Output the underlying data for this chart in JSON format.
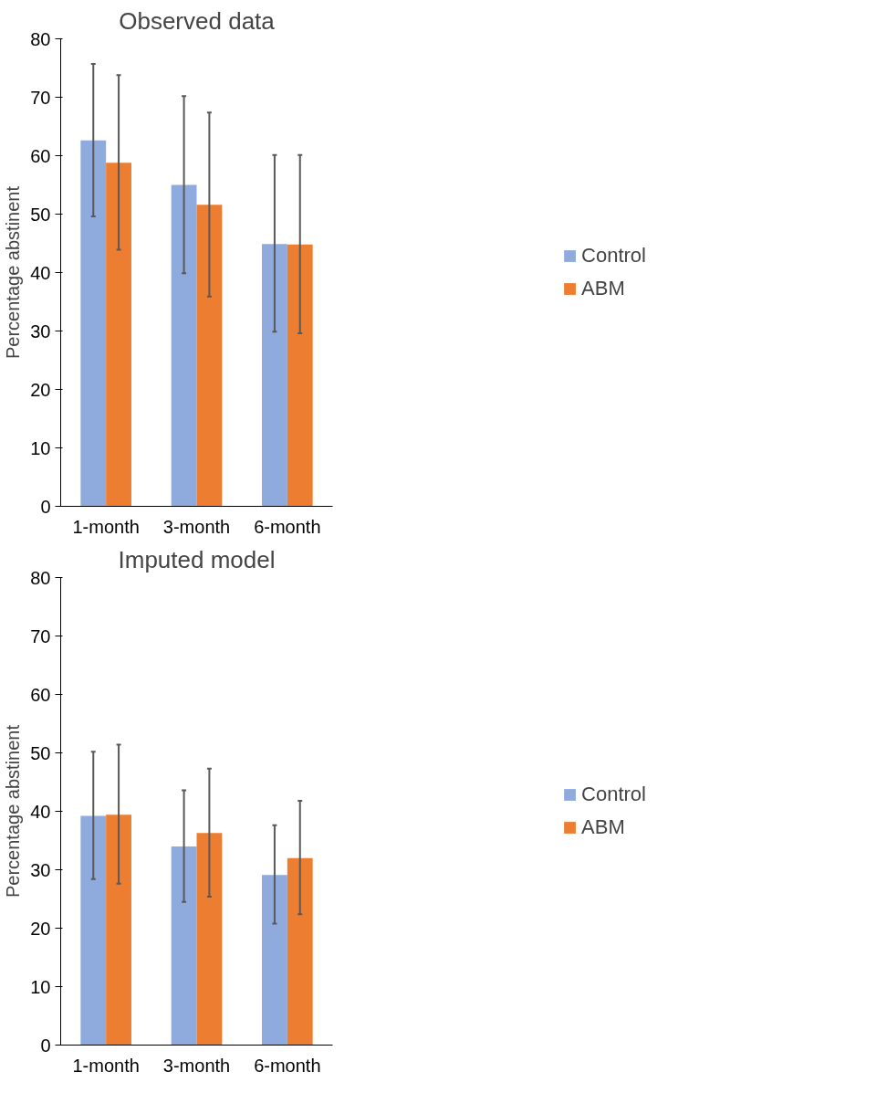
{
  "chart_data": [
    {
      "type": "bar",
      "title": "Observed data",
      "ylabel": "Percentage abstinent",
      "categories": [
        "1-month",
        "3-month",
        "6-month"
      ],
      "ylim": [
        0,
        80
      ],
      "yticks": [
        0,
        10,
        20,
        30,
        40,
        50,
        60,
        70,
        80
      ],
      "grid": false,
      "legend": "right",
      "series": [
        {
          "name": "Control",
          "color": "#8faadc",
          "values": [
            62.6,
            55.0,
            44.9
          ],
          "errors": [
            [
              49.6,
              75.7
            ],
            [
              39.9,
              70.2
            ],
            [
              29.9,
              60.1
            ]
          ]
        },
        {
          "name": "ABM",
          "color": "#ed7d31",
          "values": [
            58.8,
            51.6,
            44.8
          ],
          "errors": [
            [
              43.9,
              73.8
            ],
            [
              35.9,
              67.4
            ],
            [
              29.6,
              60.1
            ]
          ]
        }
      ]
    },
    {
      "type": "bar",
      "title": "Imputed model",
      "ylabel": "Percentage abstinent",
      "categories": [
        "1-month",
        "3-month",
        "6-month"
      ],
      "ylim": [
        0,
        80
      ],
      "yticks": [
        0,
        10,
        20,
        30,
        40,
        50,
        60,
        70,
        80
      ],
      "grid": false,
      "legend": "right",
      "series": [
        {
          "name": "Control",
          "color": "#8faadc",
          "values": [
            39.2,
            34.0,
            29.1
          ],
          "errors": [
            [
              28.4,
              50.2
            ],
            [
              24.5,
              43.6
            ],
            [
              20.8,
              37.6
            ]
          ]
        },
        {
          "name": "ABM",
          "color": "#ed7d31",
          "values": [
            39.4,
            36.3,
            32.0
          ],
          "errors": [
            [
              27.6,
              51.4
            ],
            [
              25.4,
              47.3
            ],
            [
              22.4,
              41.8
            ]
          ]
        }
      ]
    }
  ]
}
